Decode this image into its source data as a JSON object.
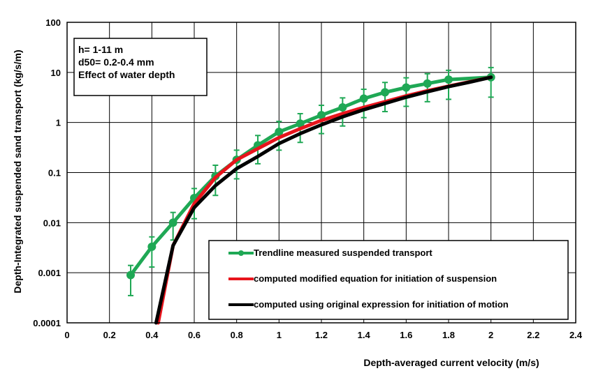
{
  "chart_data": {
    "type": "line",
    "xlabel": "Depth-averaged current velocity (m/s)",
    "ylabel": "Depth-Integrated suspended  sand transport (kg/s/m)",
    "xlim": [
      0,
      2.4
    ],
    "ylim": [
      0.0001,
      100
    ],
    "yscale": "log",
    "grid": true,
    "x_ticks": [
      "0",
      "0.2",
      "0.4",
      "0.6",
      "0.8",
      "1",
      "1.2",
      "1.4",
      "1.6",
      "1.8",
      "2",
      "2.2",
      "2.4"
    ],
    "y_ticks": [
      "0.0001",
      "0.001",
      "0.01",
      "0.1",
      "1",
      "10",
      "100"
    ],
    "annotation": [
      "h= 1-11 m",
      "d50= 0.2-0.4 mm",
      "Effect of water depth"
    ],
    "legend_position": "bottom-right",
    "series": [
      {
        "name": "Trendline measured suspended transport",
        "color": "#1fa855",
        "marker": "circle",
        "error_bars": true,
        "x": [
          0.3,
          0.4,
          0.5,
          0.6,
          0.7,
          0.8,
          0.9,
          1.0,
          1.1,
          1.2,
          1.3,
          1.4,
          1.5,
          1.6,
          1.7,
          1.8,
          2.0
        ],
        "y": [
          0.0009,
          0.0033,
          0.01,
          0.031,
          0.085,
          0.18,
          0.35,
          0.65,
          0.95,
          1.4,
          2.0,
          3.0,
          4.0,
          5.0,
          6.0,
          7.2,
          8.0
        ],
        "y_low": [
          0.00035,
          0.0013,
          0.0045,
          0.012,
          0.035,
          0.075,
          0.15,
          0.28,
          0.4,
          0.6,
          0.85,
          1.25,
          1.65,
          2.1,
          2.6,
          2.9,
          3.2
        ],
        "y_high": [
          0.0014,
          0.0052,
          0.016,
          0.048,
          0.14,
          0.28,
          0.55,
          1.05,
          1.5,
          2.2,
          3.1,
          4.6,
          6.3,
          7.8,
          9.4,
          11.0,
          12.5
        ]
      },
      {
        "name": "computed modified equation for initiation of suspension",
        "color": "#e8141c",
        "x": [
          0.43,
          0.5,
          0.6,
          0.7,
          0.8,
          0.9,
          1.0,
          1.1,
          1.2,
          1.3,
          1.4,
          1.5,
          1.6,
          1.7,
          1.8,
          1.9,
          2.0
        ],
        "y": [
          0.0001,
          0.0035,
          0.024,
          0.08,
          0.18,
          0.3,
          0.5,
          0.75,
          1.1,
          1.5,
          2.0,
          2.6,
          3.4,
          4.3,
          5.3,
          6.5,
          8.0
        ],
        "y_low": [],
        "y_high": []
      },
      {
        "name": "computed using original expression for initiation of motion",
        "color": "#000000",
        "x": [
          0.42,
          0.5,
          0.6,
          0.7,
          0.8,
          0.9,
          1.0,
          1.1,
          1.2,
          1.3,
          1.4,
          1.5,
          1.6,
          1.7,
          1.8,
          1.9,
          2.0
        ],
        "y": [
          0.0001,
          0.0035,
          0.02,
          0.055,
          0.12,
          0.21,
          0.38,
          0.6,
          0.9,
          1.3,
          1.8,
          2.4,
          3.2,
          4.1,
          5.2,
          6.4,
          8.0
        ],
        "y_low": [],
        "y_high": []
      }
    ]
  }
}
